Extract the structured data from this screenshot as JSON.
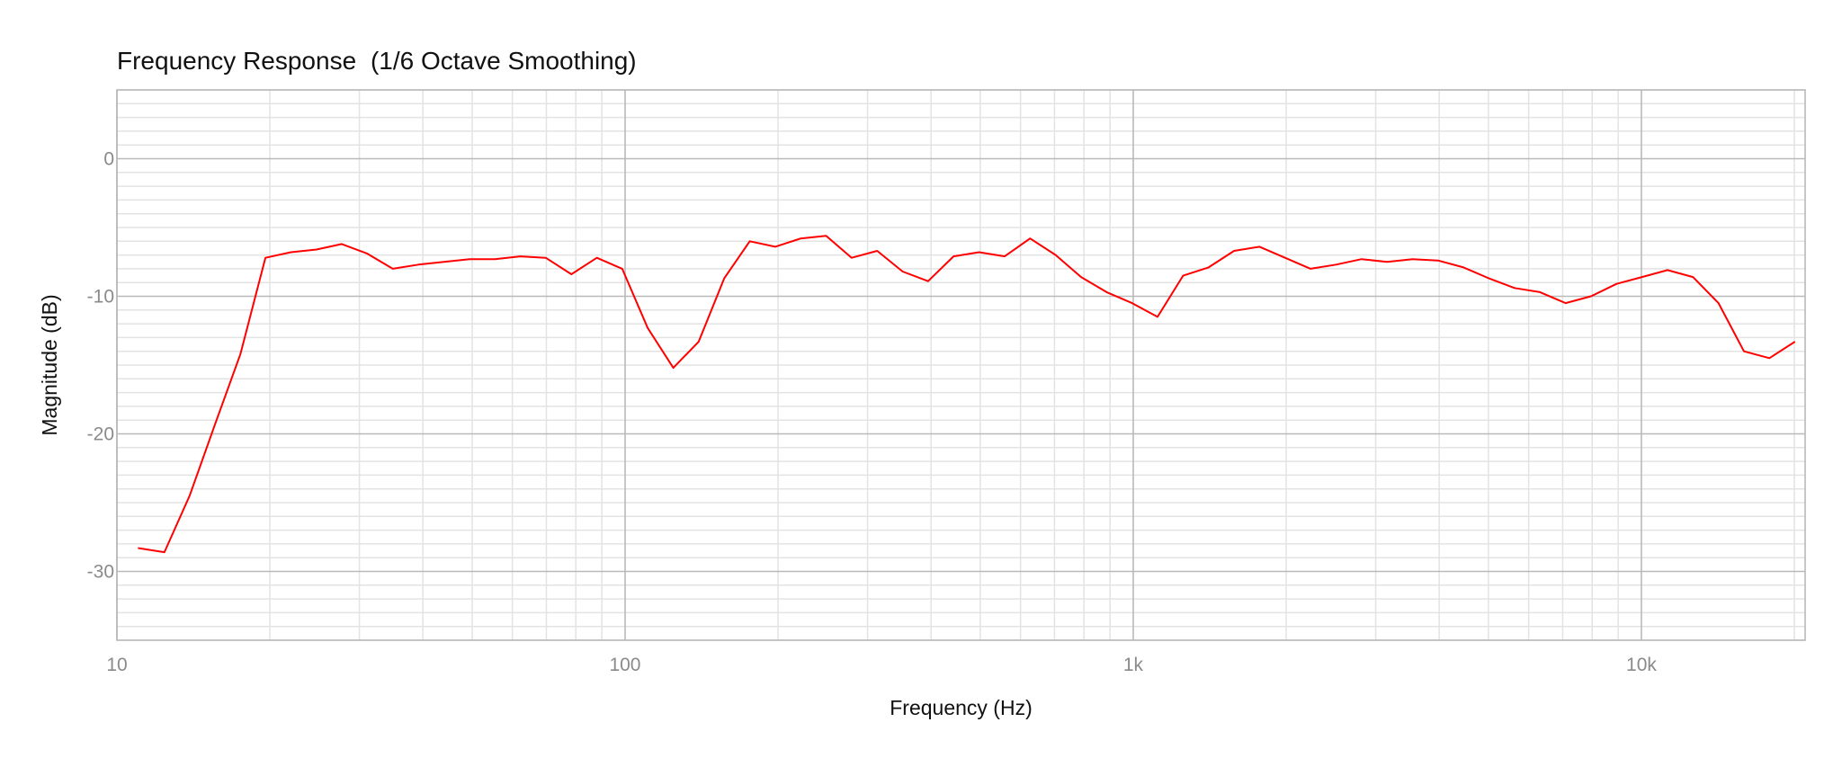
{
  "chart_data": {
    "type": "line",
    "title": "Frequency Response",
    "subtitle": "(1/6 Octave Smoothing)",
    "xlabel": "Frequency (Hz)",
    "ylabel": "Magnitude (dB)",
    "x_scale": "log",
    "xlim": [
      10,
      21000
    ],
    "ylim": [
      -35,
      5
    ],
    "x_ticks": [
      {
        "value": 10,
        "label": "10"
      },
      {
        "value": 100,
        "label": "100"
      },
      {
        "value": 1000,
        "label": "1k"
      },
      {
        "value": 10000,
        "label": "10k"
      }
    ],
    "y_ticks": [
      {
        "value": 0,
        "label": "0"
      },
      {
        "value": -10,
        "label": "-10"
      },
      {
        "value": -20,
        "label": "-20"
      },
      {
        "value": -30,
        "label": "-30"
      }
    ],
    "y_minor_step": 1,
    "grid": true,
    "series": [
      {
        "color": "#ff0000",
        "x": [
          11.0,
          12.4,
          13.9,
          15.6,
          17.5,
          19.6,
          22.0,
          24.7,
          27.7,
          31.1,
          34.9,
          39.2,
          44.0,
          49.4,
          55.4,
          62.2,
          69.8,
          78.4,
          88.0,
          98.7,
          110.8,
          124.4,
          139.6,
          156.7,
          175.9,
          197.4,
          221.6,
          248.7,
          279.2,
          313.4,
          351.7,
          394.8,
          443.1,
          497.4,
          558.3,
          626.7,
          703.5,
          789.6,
          886.3,
          994.8,
          1116.6,
          1253.4,
          1406.9,
          1579.2,
          1772.6,
          1989.6,
          2233.3,
          2506.8,
          2813.8,
          3158.4,
          3545.1,
          3979.3,
          4466.6,
          5013.6,
          5627.5,
          6316.7,
          7090.2,
          7958.5,
          8933.1,
          10027.1,
          11255.0,
          12633.3,
          14180.3,
          15916.8,
          17866.0,
          20054.0
        ],
        "y": [
          -28.3,
          -28.6,
          -24.5,
          -19.3,
          -14.2,
          -7.2,
          -6.8,
          -6.6,
          -6.2,
          -6.9,
          -8.0,
          -7.7,
          -7.5,
          -7.3,
          -7.3,
          -7.1,
          -7.2,
          -8.4,
          -7.2,
          -8.0,
          -12.3,
          -15.2,
          -13.3,
          -8.7,
          -6.0,
          -6.4,
          -5.8,
          -5.6,
          -7.2,
          -6.7,
          -8.2,
          -8.9,
          -7.1,
          -6.8,
          -7.1,
          -5.8,
          -7.0,
          -8.6,
          -9.7,
          -10.5,
          -11.5,
          -8.5,
          -7.9,
          -6.7,
          -6.4,
          -7.2,
          -8.0,
          -7.7,
          -7.3,
          -7.5,
          -7.3,
          -7.4,
          -7.9,
          -8.7,
          -9.4,
          -9.7,
          -10.5,
          -10.0,
          -9.1,
          -8.6,
          -8.1,
          -8.6,
          -10.5,
          -14.0,
          -14.5,
          -13.3
        ]
      }
    ]
  }
}
